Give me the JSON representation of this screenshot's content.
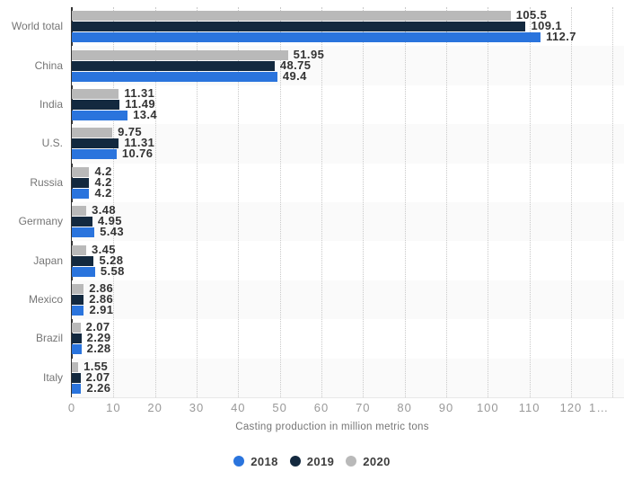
{
  "chart_data": {
    "type": "bar",
    "orientation": "horizontal",
    "xlabel": "Casting production in million metric tons",
    "categories": [
      "World total",
      "China",
      "India",
      "U.S.",
      "Russia",
      "Germany",
      "Japan",
      "Mexico",
      "Brazil",
      "Italy"
    ],
    "series": [
      {
        "name": "2018",
        "color": "#2a74dd",
        "values": [
          112.7,
          49.4,
          13.4,
          10.76,
          4.2,
          5.43,
          5.58,
          2.91,
          2.28,
          2.26
        ]
      },
      {
        "name": "2019",
        "color": "#13293f",
        "values": [
          109.1,
          48.75,
          11.49,
          11.31,
          4.2,
          4.95,
          5.28,
          2.86,
          2.29,
          2.07
        ]
      },
      {
        "name": "2020",
        "color": "#b9b9b9",
        "values": [
          105.5,
          51.95,
          11.31,
          9.75,
          4.2,
          3.48,
          3.45,
          2.86,
          2.07,
          1.55
        ]
      }
    ],
    "bar_order_top_to_bottom": [
      "2020",
      "2019",
      "2018"
    ],
    "x_ticks": [
      "0",
      "10",
      "20",
      "30",
      "40",
      "50",
      "60",
      "70",
      "80",
      "90",
      "100",
      "110",
      "120"
    ],
    "x_tick_truncated": "1…",
    "xlim": [
      0,
      132.7
    ],
    "grid": "vertical-dotted",
    "legend": [
      "2018",
      "2019",
      "2020"
    ],
    "legend_position": "bottom-center",
    "value_labels": true,
    "styles": {
      "band_color": "#fafafa",
      "gridline_color": "#c9c9c9",
      "axis_line_color": "#333333",
      "value_label_color": "#333333",
      "category_label_color": "#757575",
      "tick_label_color": "#999999",
      "axis_title_color": "#757575",
      "legend_label_color": "#3c3c3c"
    }
  }
}
